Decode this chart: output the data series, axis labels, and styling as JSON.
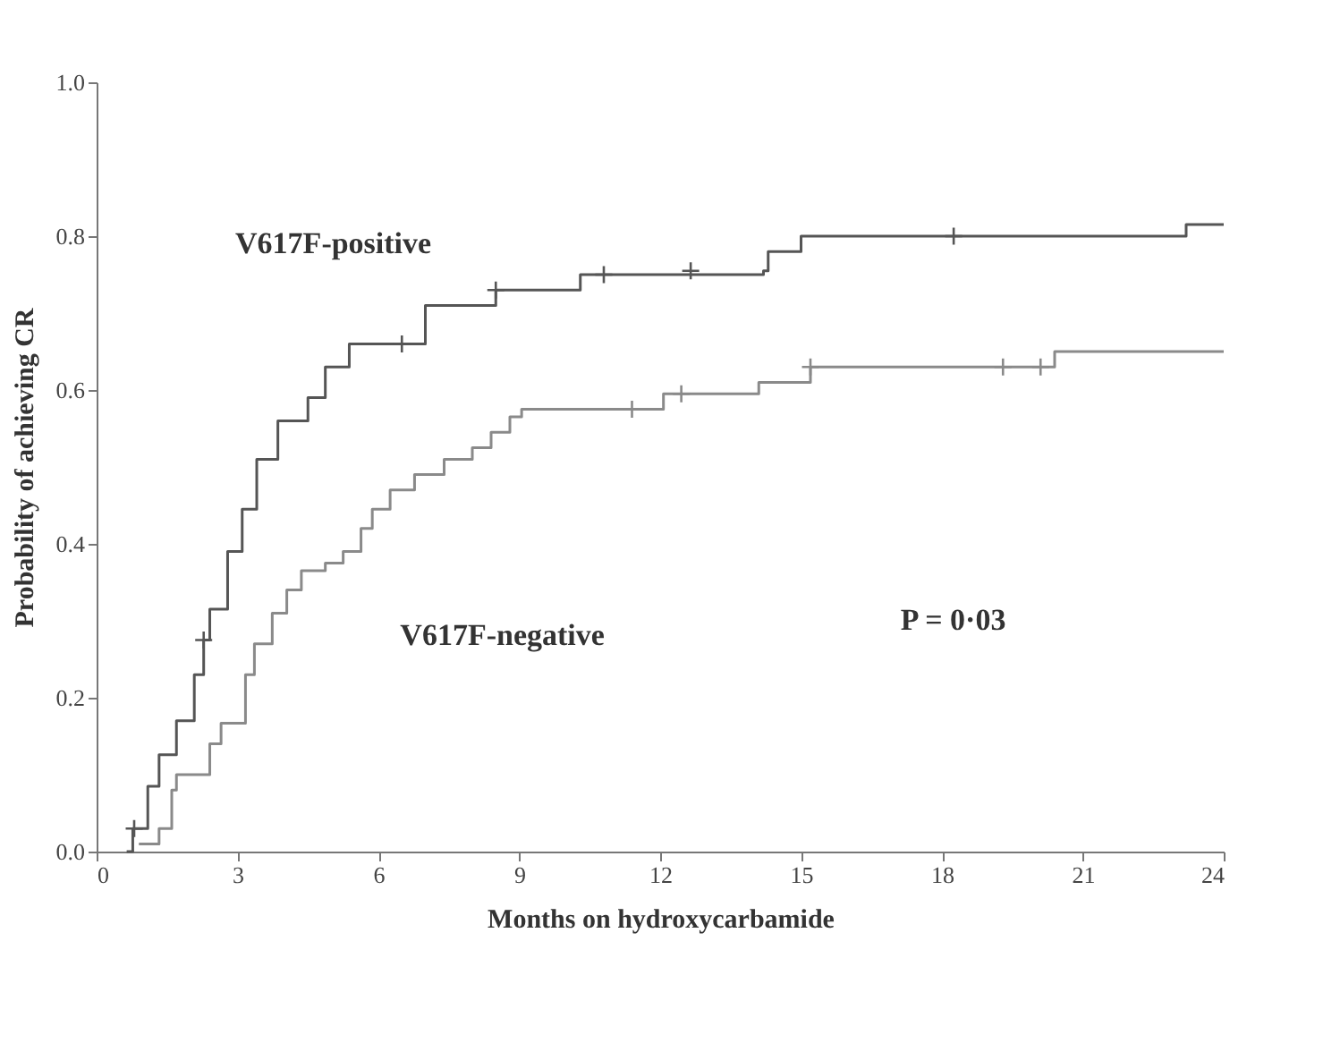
{
  "chart_data": {
    "type": "step",
    "xlabel": "Months on hydroxycarbamide",
    "ylabel": "Probability of achieving CR",
    "xlim": [
      0,
      24
    ],
    "xticks": [
      0,
      3,
      6,
      9,
      12,
      15,
      18,
      21,
      24
    ],
    "ylim": [
      0,
      1
    ],
    "yticks": [
      {
        "value": 0,
        "label": "0.0"
      },
      0.2,
      0.4,
      0.6,
      0.8,
      {
        "value": 1,
        "label": "1.0"
      }
    ],
    "line_style": "solid",
    "grid": false,
    "legend": false,
    "annotations": [
      "P = 0·03"
    ],
    "series": [
      {
        "name": "V617F-positive",
        "color": "#555555",
        "x": [
          0.64,
          0.77,
          1.09,
          1.33,
          1.7,
          2.08,
          2.28,
          2.41,
          2.79,
          3.1,
          3.41,
          3.86,
          4.5,
          4.87,
          5.38,
          7.0,
          8.5,
          10.3,
          14.2,
          14.3,
          15.0,
          23.2,
          24
        ],
        "values": [
          0,
          0.03,
          0.085,
          0.126,
          0.17,
          0.23,
          0.275,
          0.315,
          0.39,
          0.445,
          0.51,
          0.56,
          0.59,
          0.63,
          0.66,
          0.71,
          0.73,
          0.75,
          0.755,
          0.78,
          0.8,
          0.815,
          0.815
        ]
      },
      {
        "name": "V617F-negative",
        "color": "#8a8a8a",
        "x": [
          0.9,
          1.33,
          1.6,
          1.7,
          2.41,
          2.65,
          3.17,
          3.36,
          3.74,
          4.05,
          4.36,
          4.87,
          5.25,
          5.63,
          5.87,
          6.25,
          6.77,
          7.4,
          8.0,
          8.4,
          8.8,
          9.05,
          12.07,
          14.1,
          15.2,
          20.4,
          24
        ],
        "values": [
          0.01,
          0.03,
          0.08,
          0.1,
          0.14,
          0.167,
          0.23,
          0.27,
          0.31,
          0.34,
          0.365,
          0.375,
          0.39,
          0.42,
          0.445,
          0.47,
          0.49,
          0.51,
          0.525,
          0.545,
          0.565,
          0.575,
          0.595,
          0.61,
          0.63,
          0.65,
          0.65
        ]
      },
      {
        "type": "scatter",
        "marker": "cross",
        "color": "#555555",
        "x": [
          0.8,
          2.28,
          6.5,
          8.5,
          10.8,
          12.65,
          18.25
        ],
        "values": [
          0.03,
          0.275,
          0.66,
          0.73,
          0.75,
          0.755,
          0.8
        ]
      },
      {
        "type": "scatter",
        "marker": "cross",
        "color": "#8a8a8a",
        "x": [
          11.4,
          12.45,
          15.2,
          19.3,
          20.1
        ],
        "values": [
          0.575,
          0.595,
          0.63,
          0.63,
          0.63
        ]
      }
    ]
  }
}
